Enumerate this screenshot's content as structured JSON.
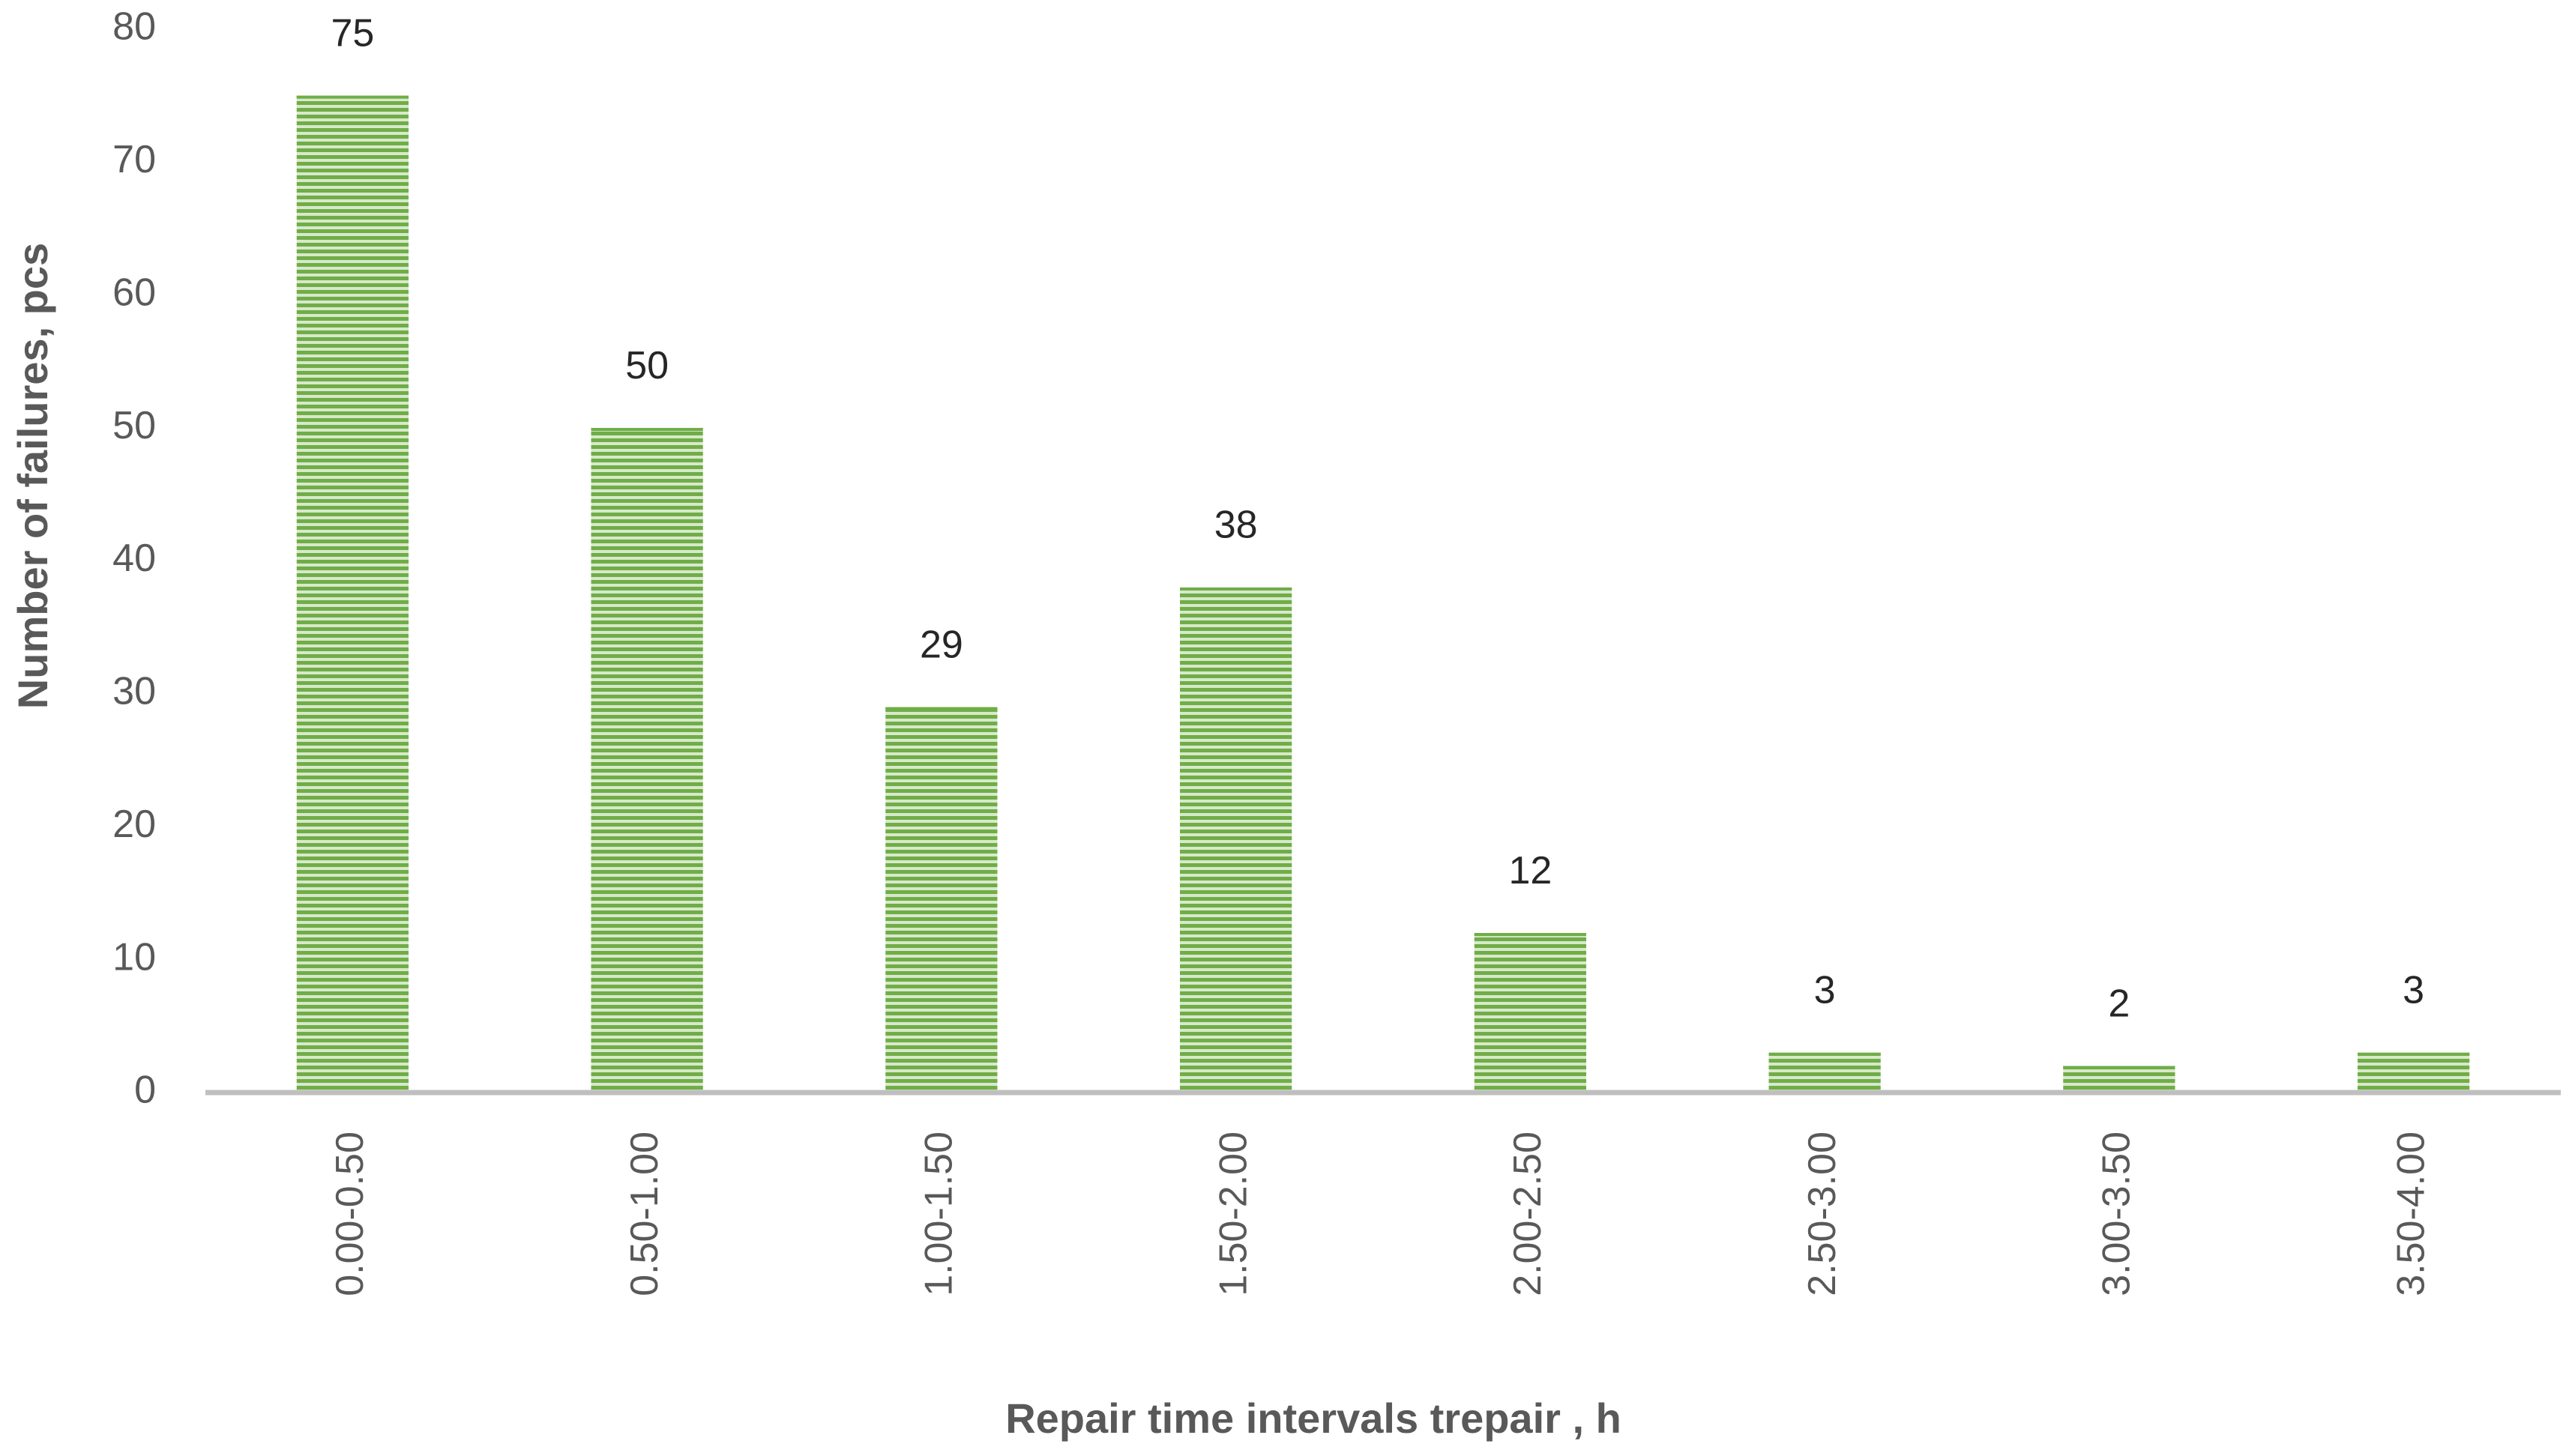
{
  "chart_data": {
    "type": "bar",
    "x_label": "Repair time intervals trepair , h",
    "y_label": "Number of failures, pcs",
    "categories": [
      "0.00-0.50",
      "0.50-1.00",
      "1.00-1.50",
      "1.50-2.00",
      "2.00-2.50",
      "2.50-3.00",
      "3.00-3.50",
      "3.50-4.00"
    ],
    "values": [
      75,
      50,
      29,
      38,
      12,
      3,
      2,
      3
    ],
    "color": "#70ad47",
    "ylim": [
      0,
      80
    ],
    "yticks": [
      0,
      10,
      20,
      30,
      40,
      50,
      60,
      70,
      80
    ],
    "grid": false
  }
}
